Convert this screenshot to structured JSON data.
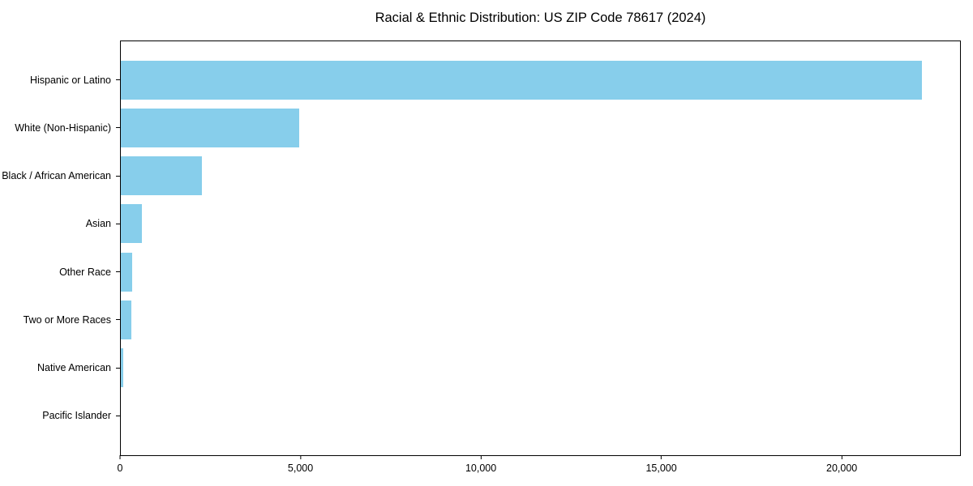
{
  "chart_data": {
    "type": "bar",
    "orientation": "horizontal",
    "title": "Racial & Ethnic Distribution: US ZIP Code 78617 (2024)",
    "categories": [
      "Hispanic or Latino",
      "White (Non-Hispanic)",
      "Black / African American",
      "Asian",
      "Other Race",
      "Two or More Races",
      "Native American",
      "Pacific Islander"
    ],
    "values": [
      22250,
      4950,
      2250,
      575,
      310,
      300,
      75,
      0
    ],
    "xlabel": "",
    "ylabel": "",
    "xlim": [
      0,
      23300
    ],
    "x_ticks": [
      {
        "value": 0,
        "label": "0"
      },
      {
        "value": 5000,
        "label": "5,000"
      },
      {
        "value": 10000,
        "label": "10,000"
      },
      {
        "value": 15000,
        "label": "15,000"
      },
      {
        "value": 20000,
        "label": "20,000"
      }
    ],
    "bar_color": "#87CEEB",
    "axis_color": "#000000",
    "background_color": "#ffffff",
    "grid": false,
    "legend": null
  }
}
